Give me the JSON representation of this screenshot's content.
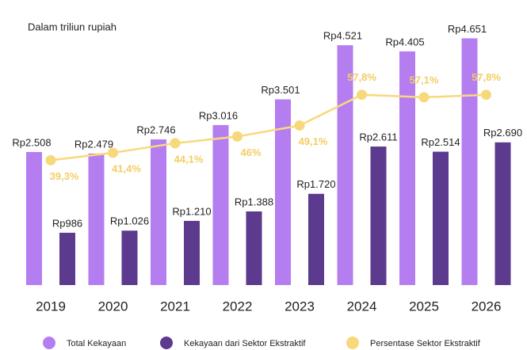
{
  "chart_data": {
    "type": "bar-line",
    "subtitle": "Dalam triliun rupiah",
    "categories": [
      "2019",
      "2020",
      "2021",
      "2022",
      "2023",
      "2024",
      "2025",
      "2026"
    ],
    "series": [
      {
        "name": "Total Kekayaan",
        "color": "#b57ef0",
        "type": "bar",
        "values": [
          2508,
          2479,
          2746,
          3016,
          3501,
          4521,
          4405,
          4651
        ],
        "value_labels": [
          "Rp2.508",
          "Rp2.479",
          "Rp2.746",
          "Rp3.016",
          "Rp3.501",
          "Rp4.521",
          "Rp4.405",
          "Rp4.651"
        ]
      },
      {
        "name": "Kekayaan dari Sektor Ekstraktif",
        "color": "#5c3a8e",
        "type": "bar",
        "values": [
          986,
          1026,
          1210,
          1388,
          1720,
          2611,
          2514,
          2690
        ],
        "value_labels": [
          "Rp986",
          "Rp1.026",
          "Rp1.210",
          "Rp1.388",
          "Rp1.720",
          "Rp2.611",
          "Rp2.514",
          "Rp2.690"
        ]
      },
      {
        "name": "Persentase Sektor Ekstraktif",
        "color": "#f7d97c",
        "type": "line",
        "axis": "y2",
        "values": [
          39.3,
          41.4,
          44.1,
          46,
          49.1,
          57.8,
          57.1,
          57.8
        ],
        "value_labels": [
          "39,3%",
          "41,4%",
          "44,1%",
          "46%",
          "49,1%",
          "57,8%",
          "57,1%",
          "57,8%"
        ]
      }
    ],
    "ylim": [
      0,
      5000
    ],
    "y2lim": [
      4,
      79
    ]
  }
}
